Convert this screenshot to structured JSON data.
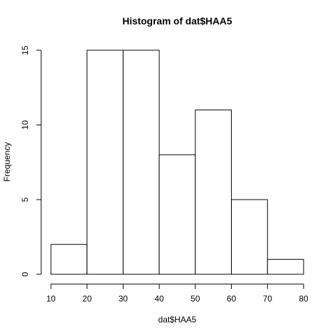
{
  "chart_data": {
    "type": "bar",
    "title": "Histogram of dat$HAA5",
    "xlabel": "dat$HAA5",
    "ylabel": "Frequency",
    "bins": [
      {
        "start": 10,
        "end": 20,
        "count": 2
      },
      {
        "start": 20,
        "end": 30,
        "count": 15
      },
      {
        "start": 30,
        "end": 40,
        "count": 15
      },
      {
        "start": 40,
        "end": 50,
        "count": 8
      },
      {
        "start": 50,
        "end": 60,
        "count": 11
      },
      {
        "start": 60,
        "end": 70,
        "count": 5
      },
      {
        "start": 70,
        "end": 80,
        "count": 1
      }
    ],
    "x_ticks": [
      10,
      20,
      30,
      40,
      50,
      60,
      70,
      80
    ],
    "y_ticks": [
      0,
      5,
      10,
      15
    ],
    "xlim": [
      10,
      80
    ],
    "ylim": [
      0,
      15
    ],
    "grid": false,
    "legend": false,
    "colors": {
      "bar_fill": "#ffffff",
      "bar_stroke": "#000000",
      "axis": "#000000"
    }
  }
}
